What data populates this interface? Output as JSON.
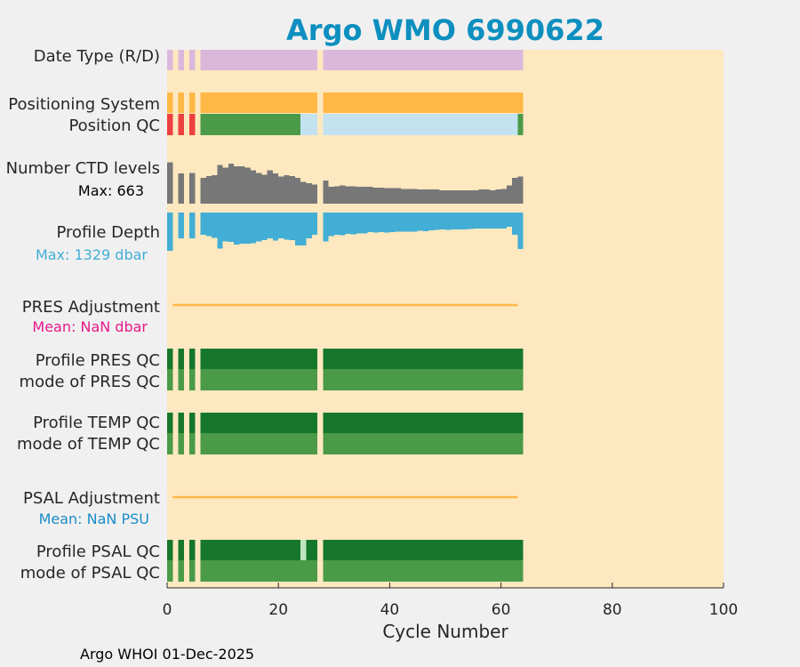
{
  "chart_data": {
    "type": "bar",
    "title": "Argo WMO 6990622",
    "xlabel": "Cycle Number",
    "xlim": [
      0,
      100
    ],
    "xticks": [
      0,
      20,
      40,
      60,
      80,
      100
    ],
    "xtick_labels": [
      "0",
      "20",
      "40",
      "60",
      "80",
      "100"
    ],
    "footer": "Argo WHOI 01-Dec-2025",
    "cycles_present": [
      1,
      3,
      5,
      7,
      8,
      9,
      10,
      11,
      12,
      13,
      14,
      15,
      16,
      17,
      18,
      19,
      20,
      21,
      22,
      23,
      24,
      25,
      26,
      27,
      29,
      30,
      31,
      32,
      33,
      34,
      35,
      36,
      37,
      38,
      39,
      40,
      41,
      42,
      43,
      44,
      45,
      46,
      47,
      48,
      49,
      50,
      51,
      52,
      53,
      54,
      55,
      56,
      57,
      58,
      59,
      60,
      61,
      62,
      63,
      64
    ],
    "colors": {
      "background": "#fde8c0",
      "date_type": "#dbb8db",
      "positioning": "#ffb845",
      "pos_qc_good": "#4a9a48",
      "pos_qc_bad": "#ee4040",
      "pos_qc_missing": "#c2e2f0",
      "ctd_levels": "#777777",
      "profile_depth": "#43aed5",
      "adjustment_line": "#ffb845",
      "qc_profile": "#16772c",
      "qc_mode": "#4a9a48",
      "qc_probable": "#bfe6bd",
      "title": "#0d8fbf",
      "pres_mean": "#e6198a",
      "psal_mean": "#1a8cc8"
    },
    "rows": {
      "date_type": {
        "label": "Date Type (R/D)"
      },
      "positioning": {
        "label": "Positioning System"
      },
      "position_qc": {
        "label": "Position QC",
        "bad_cycles": [
          1,
          3,
          5
        ],
        "missing_range": [
          25,
          63
        ]
      },
      "ctd_levels": {
        "label": "Number CTD levels",
        "max_label": "Max: 663",
        "max": 663,
        "values": [
          {
            "c": 1,
            "v": 640
          },
          {
            "c": 3,
            "v": 470
          },
          {
            "c": 5,
            "v": 480
          },
          {
            "c": 7,
            "v": 400
          },
          {
            "c": 8,
            "v": 430
          },
          {
            "c": 9,
            "v": 440
          },
          {
            "c": 10,
            "v": 600
          },
          {
            "c": 11,
            "v": 560
          },
          {
            "c": 12,
            "v": 620
          },
          {
            "c": 13,
            "v": 580
          },
          {
            "c": 14,
            "v": 580
          },
          {
            "c": 15,
            "v": 560
          },
          {
            "c": 16,
            "v": 520
          },
          {
            "c": 17,
            "v": 480
          },
          {
            "c": 18,
            "v": 450
          },
          {
            "c": 19,
            "v": 520
          },
          {
            "c": 20,
            "v": 470
          },
          {
            "c": 21,
            "v": 420
          },
          {
            "c": 22,
            "v": 440
          },
          {
            "c": 23,
            "v": 430
          },
          {
            "c": 24,
            "v": 400
          },
          {
            "c": 25,
            "v": 340
          },
          {
            "c": 26,
            "v": 320
          },
          {
            "c": 27,
            "v": 300
          },
          {
            "c": 29,
            "v": 360
          },
          {
            "c": 30,
            "v": 260
          },
          {
            "c": 31,
            "v": 270
          },
          {
            "c": 32,
            "v": 280
          },
          {
            "c": 33,
            "v": 270
          },
          {
            "c": 34,
            "v": 270
          },
          {
            "c": 35,
            "v": 260
          },
          {
            "c": 36,
            "v": 260
          },
          {
            "c": 37,
            "v": 260
          },
          {
            "c": 38,
            "v": 250
          },
          {
            "c": 39,
            "v": 250
          },
          {
            "c": 40,
            "v": 240
          },
          {
            "c": 41,
            "v": 240
          },
          {
            "c": 42,
            "v": 240
          },
          {
            "c": 43,
            "v": 230
          },
          {
            "c": 44,
            "v": 230
          },
          {
            "c": 45,
            "v": 230
          },
          {
            "c": 46,
            "v": 220
          },
          {
            "c": 47,
            "v": 220
          },
          {
            "c": 48,
            "v": 220
          },
          {
            "c": 49,
            "v": 220
          },
          {
            "c": 50,
            "v": 210
          },
          {
            "c": 51,
            "v": 210
          },
          {
            "c": 52,
            "v": 210
          },
          {
            "c": 53,
            "v": 210
          },
          {
            "c": 54,
            "v": 210
          },
          {
            "c": 55,
            "v": 210
          },
          {
            "c": 56,
            "v": 210
          },
          {
            "c": 57,
            "v": 220
          },
          {
            "c": 58,
            "v": 220
          },
          {
            "c": 59,
            "v": 210
          },
          {
            "c": 60,
            "v": 220
          },
          {
            "c": 61,
            "v": 230
          },
          {
            "c": 62,
            "v": 280
          },
          {
            "c": 63,
            "v": 400
          },
          {
            "c": 64,
            "v": 420
          }
        ]
      },
      "profile_depth": {
        "label": "Profile Depth",
        "max_label": "Max: 1329 dbar",
        "max": 1329,
        "values": [
          {
            "c": 1,
            "v": 1329
          },
          {
            "c": 3,
            "v": 900
          },
          {
            "c": 5,
            "v": 900
          },
          {
            "c": 7,
            "v": 780
          },
          {
            "c": 8,
            "v": 820
          },
          {
            "c": 9,
            "v": 880
          },
          {
            "c": 10,
            "v": 1250
          },
          {
            "c": 11,
            "v": 1000
          },
          {
            "c": 12,
            "v": 1020
          },
          {
            "c": 13,
            "v": 1110
          },
          {
            "c": 14,
            "v": 1080
          },
          {
            "c": 15,
            "v": 1080
          },
          {
            "c": 16,
            "v": 1060
          },
          {
            "c": 17,
            "v": 1000
          },
          {
            "c": 18,
            "v": 960
          },
          {
            "c": 19,
            "v": 900
          },
          {
            "c": 20,
            "v": 980
          },
          {
            "c": 21,
            "v": 900
          },
          {
            "c": 22,
            "v": 940
          },
          {
            "c": 23,
            "v": 960
          },
          {
            "c": 24,
            "v": 1150
          },
          {
            "c": 25,
            "v": 1150
          },
          {
            "c": 26,
            "v": 900
          },
          {
            "c": 27,
            "v": 780
          },
          {
            "c": 29,
            "v": 1000
          },
          {
            "c": 30,
            "v": 820
          },
          {
            "c": 31,
            "v": 780
          },
          {
            "c": 32,
            "v": 790
          },
          {
            "c": 33,
            "v": 740
          },
          {
            "c": 34,
            "v": 760
          },
          {
            "c": 35,
            "v": 720
          },
          {
            "c": 36,
            "v": 730
          },
          {
            "c": 37,
            "v": 680
          },
          {
            "c": 38,
            "v": 700
          },
          {
            "c": 39,
            "v": 680
          },
          {
            "c": 40,
            "v": 700
          },
          {
            "c": 41,
            "v": 680
          },
          {
            "c": 42,
            "v": 670
          },
          {
            "c": 43,
            "v": 660
          },
          {
            "c": 44,
            "v": 670
          },
          {
            "c": 45,
            "v": 660
          },
          {
            "c": 46,
            "v": 640
          },
          {
            "c": 47,
            "v": 650
          },
          {
            "c": 48,
            "v": 620
          },
          {
            "c": 49,
            "v": 610
          },
          {
            "c": 50,
            "v": 590
          },
          {
            "c": 51,
            "v": 600
          },
          {
            "c": 52,
            "v": 590
          },
          {
            "c": 53,
            "v": 580
          },
          {
            "c": 54,
            "v": 580
          },
          {
            "c": 55,
            "v": 570
          },
          {
            "c": 56,
            "v": 560
          },
          {
            "c": 57,
            "v": 560
          },
          {
            "c": 58,
            "v": 560
          },
          {
            "c": 59,
            "v": 560
          },
          {
            "c": 60,
            "v": 560
          },
          {
            "c": 61,
            "v": 560
          },
          {
            "c": 62,
            "v": 500
          },
          {
            "c": 63,
            "v": 780
          },
          {
            "c": 64,
            "v": 1260
          }
        ]
      },
      "pres_adjustment": {
        "label": "PRES Adjustment",
        "mean_label": "Mean:  NaN dbar",
        "line_range": [
          1,
          63
        ]
      },
      "profile_pres_qc": {
        "label": "Profile PRES QC"
      },
      "mode_pres_qc": {
        "label": "mode of PRES QC"
      },
      "profile_temp_qc": {
        "label": "Profile TEMP QC"
      },
      "mode_temp_qc": {
        "label": "mode of TEMP QC"
      },
      "psal_adjustment": {
        "label": "PSAL Adjustment",
        "mean_label": "Mean:  NaN PSU",
        "line_range": [
          1,
          63
        ]
      },
      "profile_psal_qc": {
        "label": "Profile PSAL QC",
        "probable_cycles": [
          25
        ]
      },
      "mode_psal_qc": {
        "label": "mode of PSAL QC"
      }
    }
  }
}
